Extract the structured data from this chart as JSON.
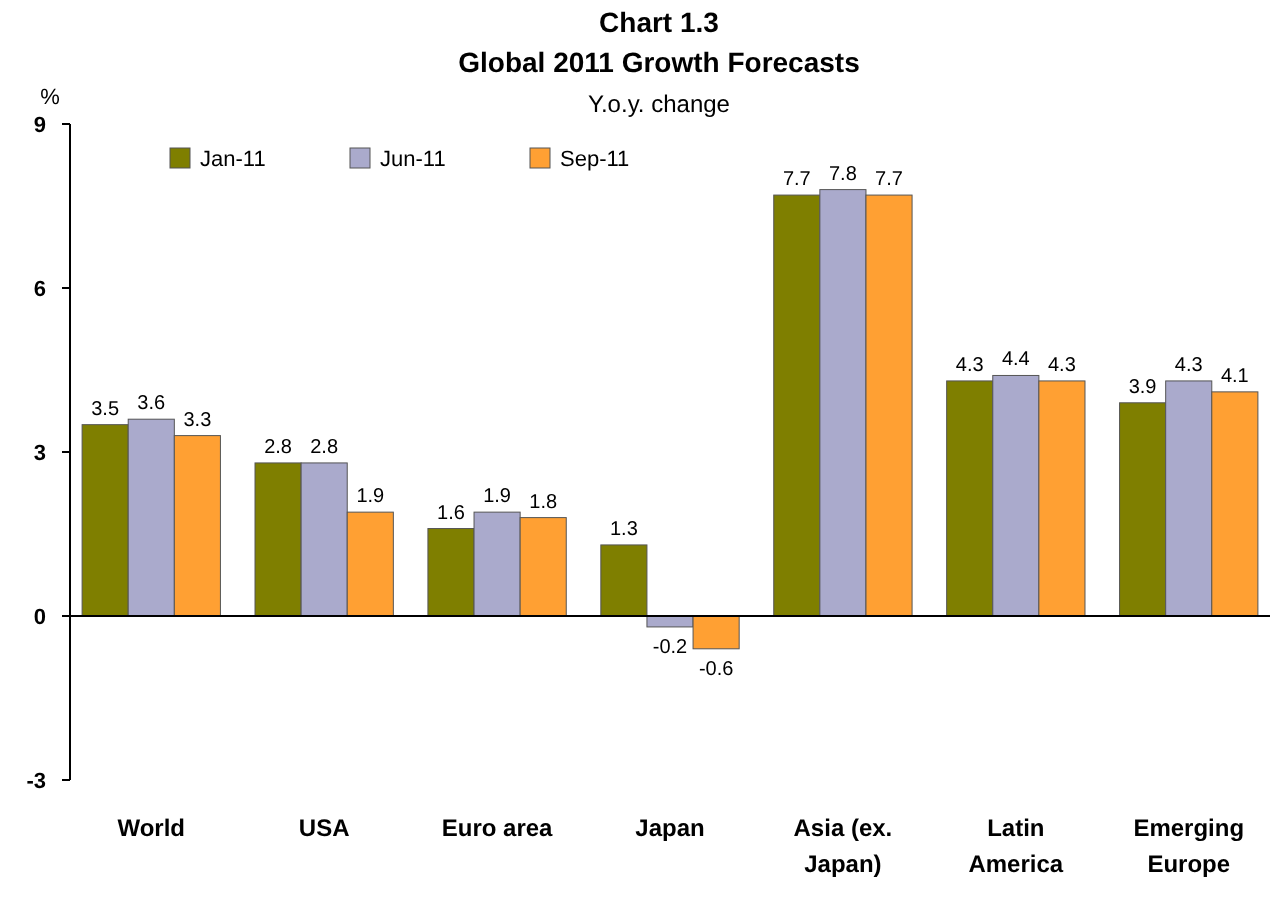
{
  "chart_data": {
    "type": "bar",
    "title": "Chart 1.3",
    "subtitle": "Global 2011 Growth Forecasts",
    "annotations": [
      "Y.o.y. change"
    ],
    "ylabel": "%",
    "categories": [
      "World",
      "USA",
      "Euro area",
      "Japan",
      "Asia (ex. Japan)",
      "Latin America",
      "Emerging Europe"
    ],
    "series": [
      {
        "name": "Jan-11",
        "color": "#7f7f00",
        "values": [
          3.5,
          2.8,
          1.6,
          1.3,
          7.7,
          4.3,
          3.9
        ]
      },
      {
        "name": "Jun-11",
        "color": "#aaaacc",
        "values": [
          3.6,
          2.8,
          1.9,
          -0.2,
          7.8,
          4.4,
          4.3
        ]
      },
      {
        "name": "Sep-11",
        "color": "#ffa033",
        "values": [
          3.3,
          1.9,
          1.8,
          -0.6,
          7.7,
          4.3,
          4.1
        ]
      }
    ],
    "ylim": [
      -3,
      9
    ],
    "yticks": [
      -3,
      0,
      3,
      6,
      9
    ],
    "data_labels": true,
    "legend": "top left"
  }
}
